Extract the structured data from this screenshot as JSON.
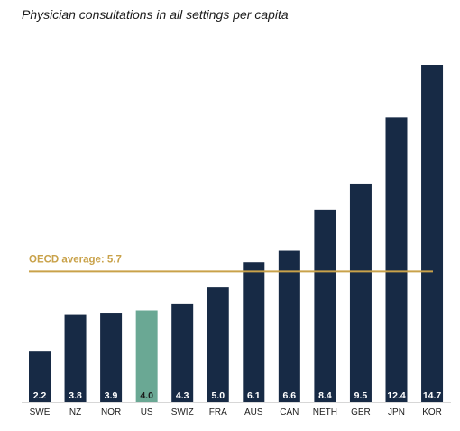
{
  "chart_data": {
    "type": "bar",
    "title": "Physician consultations in all settings per capita",
    "categories": [
      "SWE",
      "NZ",
      "NOR",
      "US",
      "SWIZ",
      "FRA",
      "AUS",
      "CAN",
      "NETH",
      "GER",
      "JPN",
      "KOR"
    ],
    "values": [
      2.2,
      3.8,
      3.9,
      4.0,
      4.3,
      5.0,
      6.1,
      6.6,
      8.4,
      9.5,
      12.4,
      14.7
    ],
    "value_labels": [
      "2.2",
      "3.8",
      "3.9",
      "4.0",
      "4.3",
      "5.0",
      "6.1",
      "6.6",
      "8.4",
      "9.5",
      "12.4",
      "14.7"
    ],
    "highlight_category": "US",
    "reference_line": {
      "label": "OECD average: 5.7",
      "value": 5.7
    },
    "xlabel": "",
    "ylabel": "",
    "ylim": [
      0,
      14.7
    ],
    "grid": false,
    "colors": {
      "bar": "#172a45",
      "highlight_bar": "#6aa894",
      "reference_line": "#c9a24a",
      "value_label_default": "#ffffff",
      "value_label_highlight": "#1b1b1b",
      "axis_baseline": "#d7d7d7",
      "category_label": "#1b1b1b"
    }
  }
}
